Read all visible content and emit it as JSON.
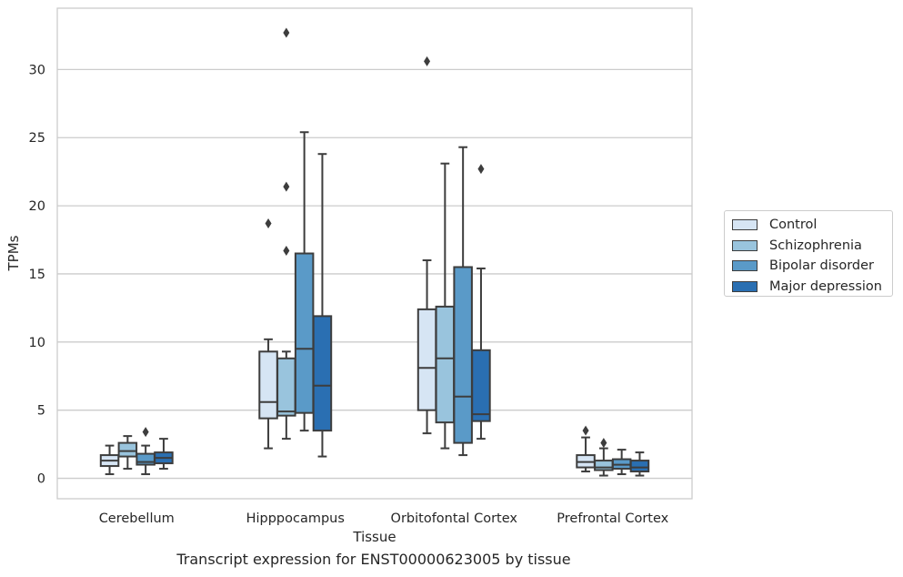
{
  "chart_data": {
    "type": "box",
    "title": "",
    "xlabel": "Tissue",
    "ylabel": "TPMs",
    "ylim": [
      -1.5,
      34.5
    ],
    "yticks": [
      0,
      5,
      10,
      15,
      20,
      25,
      30
    ],
    "grid": true,
    "legend_position": "right",
    "caption": "Transcript expression for ENST00000623005 by tissue",
    "categories": [
      "Cerebellum",
      "Hipppocampus",
      "Orbitofontal Cortex",
      "Prefrontal Cortex"
    ],
    "series": [
      {
        "name": "Control",
        "color": "#d6e5f4",
        "boxes": [
          {
            "whisker_low": 0.3,
            "q1": 0.9,
            "median": 1.3,
            "q3": 1.7,
            "whisker_high": 2.4,
            "outliers": []
          },
          {
            "whisker_low": 2.2,
            "q1": 4.4,
            "median": 5.6,
            "q3": 9.3,
            "whisker_high": 10.2,
            "outliers": [
              18.7
            ]
          },
          {
            "whisker_low": 3.3,
            "q1": 5.0,
            "median": 8.1,
            "q3": 12.4,
            "whisker_high": 16.0,
            "outliers": [
              30.6
            ]
          },
          {
            "whisker_low": 0.5,
            "q1": 0.8,
            "median": 1.2,
            "q3": 1.7,
            "whisker_high": 3.0,
            "outliers": [
              3.5
            ]
          }
        ]
      },
      {
        "name": "Schizophrenia",
        "color": "#99c4dd",
        "boxes": [
          {
            "whisker_low": 0.7,
            "q1": 1.6,
            "median": 2.0,
            "q3": 2.6,
            "whisker_high": 3.1,
            "outliers": []
          },
          {
            "whisker_low": 2.9,
            "q1": 4.6,
            "median": 4.9,
            "q3": 8.8,
            "whisker_high": 9.3,
            "outliers": [
              16.7,
              21.4,
              32.7
            ]
          },
          {
            "whisker_low": 2.2,
            "q1": 4.1,
            "median": 8.8,
            "q3": 12.6,
            "whisker_high": 23.1,
            "outliers": []
          },
          {
            "whisker_low": 0.2,
            "q1": 0.6,
            "median": 0.8,
            "q3": 1.3,
            "whisker_high": 2.2,
            "outliers": [
              2.6
            ]
          }
        ]
      },
      {
        "name": "Bipolar disorder",
        "color": "#5a9ac8",
        "boxes": [
          {
            "whisker_low": 0.3,
            "q1": 1.0,
            "median": 1.2,
            "q3": 1.8,
            "whisker_high": 2.4,
            "outliers": [
              3.4
            ]
          },
          {
            "whisker_low": 3.5,
            "q1": 4.8,
            "median": 9.5,
            "q3": 16.5,
            "whisker_high": 25.4,
            "outliers": []
          },
          {
            "whisker_low": 1.7,
            "q1": 2.6,
            "median": 6.0,
            "q3": 15.5,
            "whisker_high": 24.3,
            "outliers": []
          },
          {
            "whisker_low": 0.3,
            "q1": 0.7,
            "median": 1.0,
            "q3": 1.4,
            "whisker_high": 2.1,
            "outliers": []
          }
        ]
      },
      {
        "name": "Major depression",
        "color": "#2a6fb2",
        "boxes": [
          {
            "whisker_low": 0.7,
            "q1": 1.1,
            "median": 1.5,
            "q3": 1.9,
            "whisker_high": 2.9,
            "outliers": []
          },
          {
            "whisker_low": 1.6,
            "q1": 3.5,
            "median": 6.8,
            "q3": 11.9,
            "whisker_high": 23.8,
            "outliers": []
          },
          {
            "whisker_low": 2.9,
            "q1": 4.2,
            "median": 4.7,
            "q3": 9.4,
            "whisker_high": 15.4,
            "outliers": [
              22.7
            ]
          },
          {
            "whisker_low": 0.2,
            "q1": 0.5,
            "median": 0.8,
            "q3": 1.3,
            "whisker_high": 1.9,
            "outliers": []
          }
        ]
      }
    ]
  }
}
